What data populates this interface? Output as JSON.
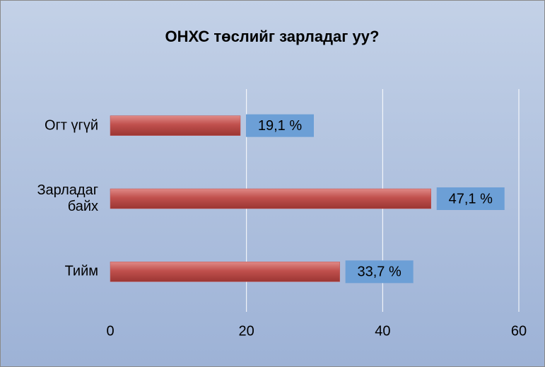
{
  "chart_data": {
    "type": "bar",
    "orientation": "horizontal",
    "title": "ОНХС төслийг зарладаг уу?",
    "categories": [
      "Огт үгүй",
      "Зарладаг байх",
      "Тийм"
    ],
    "values": [
      19.1,
      47.1,
      33.7
    ],
    "value_labels": [
      "19,1 %",
      "47,1 %",
      "33,7 %"
    ],
    "color": "#c0504d",
    "xlim": [
      0,
      60
    ],
    "xticks": [
      0,
      20,
      40,
      60
    ],
    "grid": true
  }
}
